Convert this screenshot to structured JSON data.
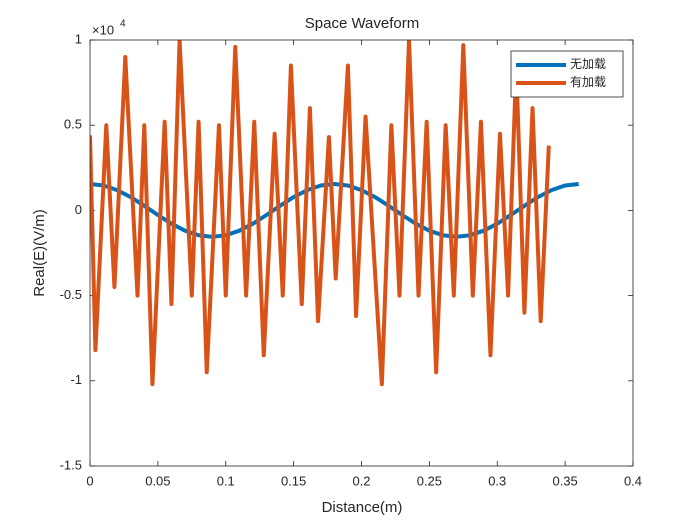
{
  "chart_data": {
    "type": "line",
    "title": "Space Waveform",
    "x_label": "Distance(m)",
    "y_label": "Real(E)(V/m)",
    "y_multiplier": "×10",
    "y_multiplier_exponent": "4",
    "xlim": [
      0,
      0.4
    ],
    "xticks": [
      0,
      0.05,
      0.1,
      0.15,
      0.2,
      0.25,
      0.3,
      0.35,
      0.4
    ],
    "ylim": [
      -1.5,
      1
    ],
    "yticks": [
      -1.5,
      -1,
      -0.5,
      0,
      0.5,
      1
    ],
    "grid": false,
    "legend_position": "top-right",
    "series": [
      {
        "name": "无加载",
        "color": "#0072bd",
        "x": [
          0,
          0.01,
          0.02,
          0.03,
          0.04,
          0.05,
          0.06,
          0.07,
          0.08,
          0.09,
          0.1,
          0.11,
          0.12,
          0.13,
          0.14,
          0.15,
          0.16,
          0.17,
          0.18,
          0.19,
          0.2,
          0.21,
          0.22,
          0.23,
          0.24,
          0.25,
          0.26,
          0.27,
          0.28,
          0.29,
          0.3,
          0.31,
          0.32,
          0.33,
          0.34,
          0.35,
          0.36
        ],
        "values": [
          0.155,
          0.146,
          0.119,
          0.078,
          0.027,
          -0.027,
          -0.078,
          -0.119,
          -0.146,
          -0.155,
          -0.146,
          -0.119,
          -0.078,
          -0.027,
          0.027,
          0.078,
          0.119,
          0.146,
          0.155,
          0.146,
          0.119,
          0.078,
          0.027,
          -0.027,
          -0.078,
          -0.119,
          -0.146,
          -0.155,
          -0.146,
          -0.119,
          -0.078,
          -0.027,
          0.027,
          0.078,
          0.119,
          0.146,
          0.155
        ]
      },
      {
        "name": "有加载",
        "color": "#d95319",
        "x": [
          0,
          0.004,
          0.012,
          0.018,
          0.026,
          0.035,
          0.04,
          0.046,
          0.055,
          0.06,
          0.066,
          0.075,
          0.08,
          0.086,
          0.095,
          0.1,
          0.107,
          0.115,
          0.121,
          0.128,
          0.136,
          0.142,
          0.148,
          0.156,
          0.162,
          0.168,
          0.176,
          0.181,
          0.19,
          0.196,
          0.203,
          0.215,
          0.222,
          0.228,
          0.235,
          0.242,
          0.248,
          0.255,
          0.262,
          0.268,
          0.275,
          0.282,
          0.288,
          0.295,
          0.302,
          0.308,
          0.314,
          0.32,
          0.326,
          0.332,
          0.338
        ],
        "values": [
          0.44,
          -0.82,
          0.5,
          -0.45,
          0.9,
          -0.5,
          0.5,
          -1.02,
          0.52,
          -0.55,
          1.0,
          -0.5,
          0.52,
          -0.95,
          0.5,
          -0.5,
          0.96,
          -0.5,
          0.52,
          -0.85,
          0.45,
          -0.5,
          0.85,
          -0.55,
          0.6,
          -0.65,
          0.43,
          -0.4,
          0.85,
          -0.62,
          0.55,
          -1.02,
          0.5,
          -0.5,
          1.0,
          -0.5,
          0.52,
          -0.95,
          0.5,
          -0.5,
          0.97,
          -0.5,
          0.52,
          -0.85,
          0.45,
          -0.5,
          0.85,
          -0.6,
          0.6,
          -0.65,
          0.38
        ]
      }
    ]
  }
}
